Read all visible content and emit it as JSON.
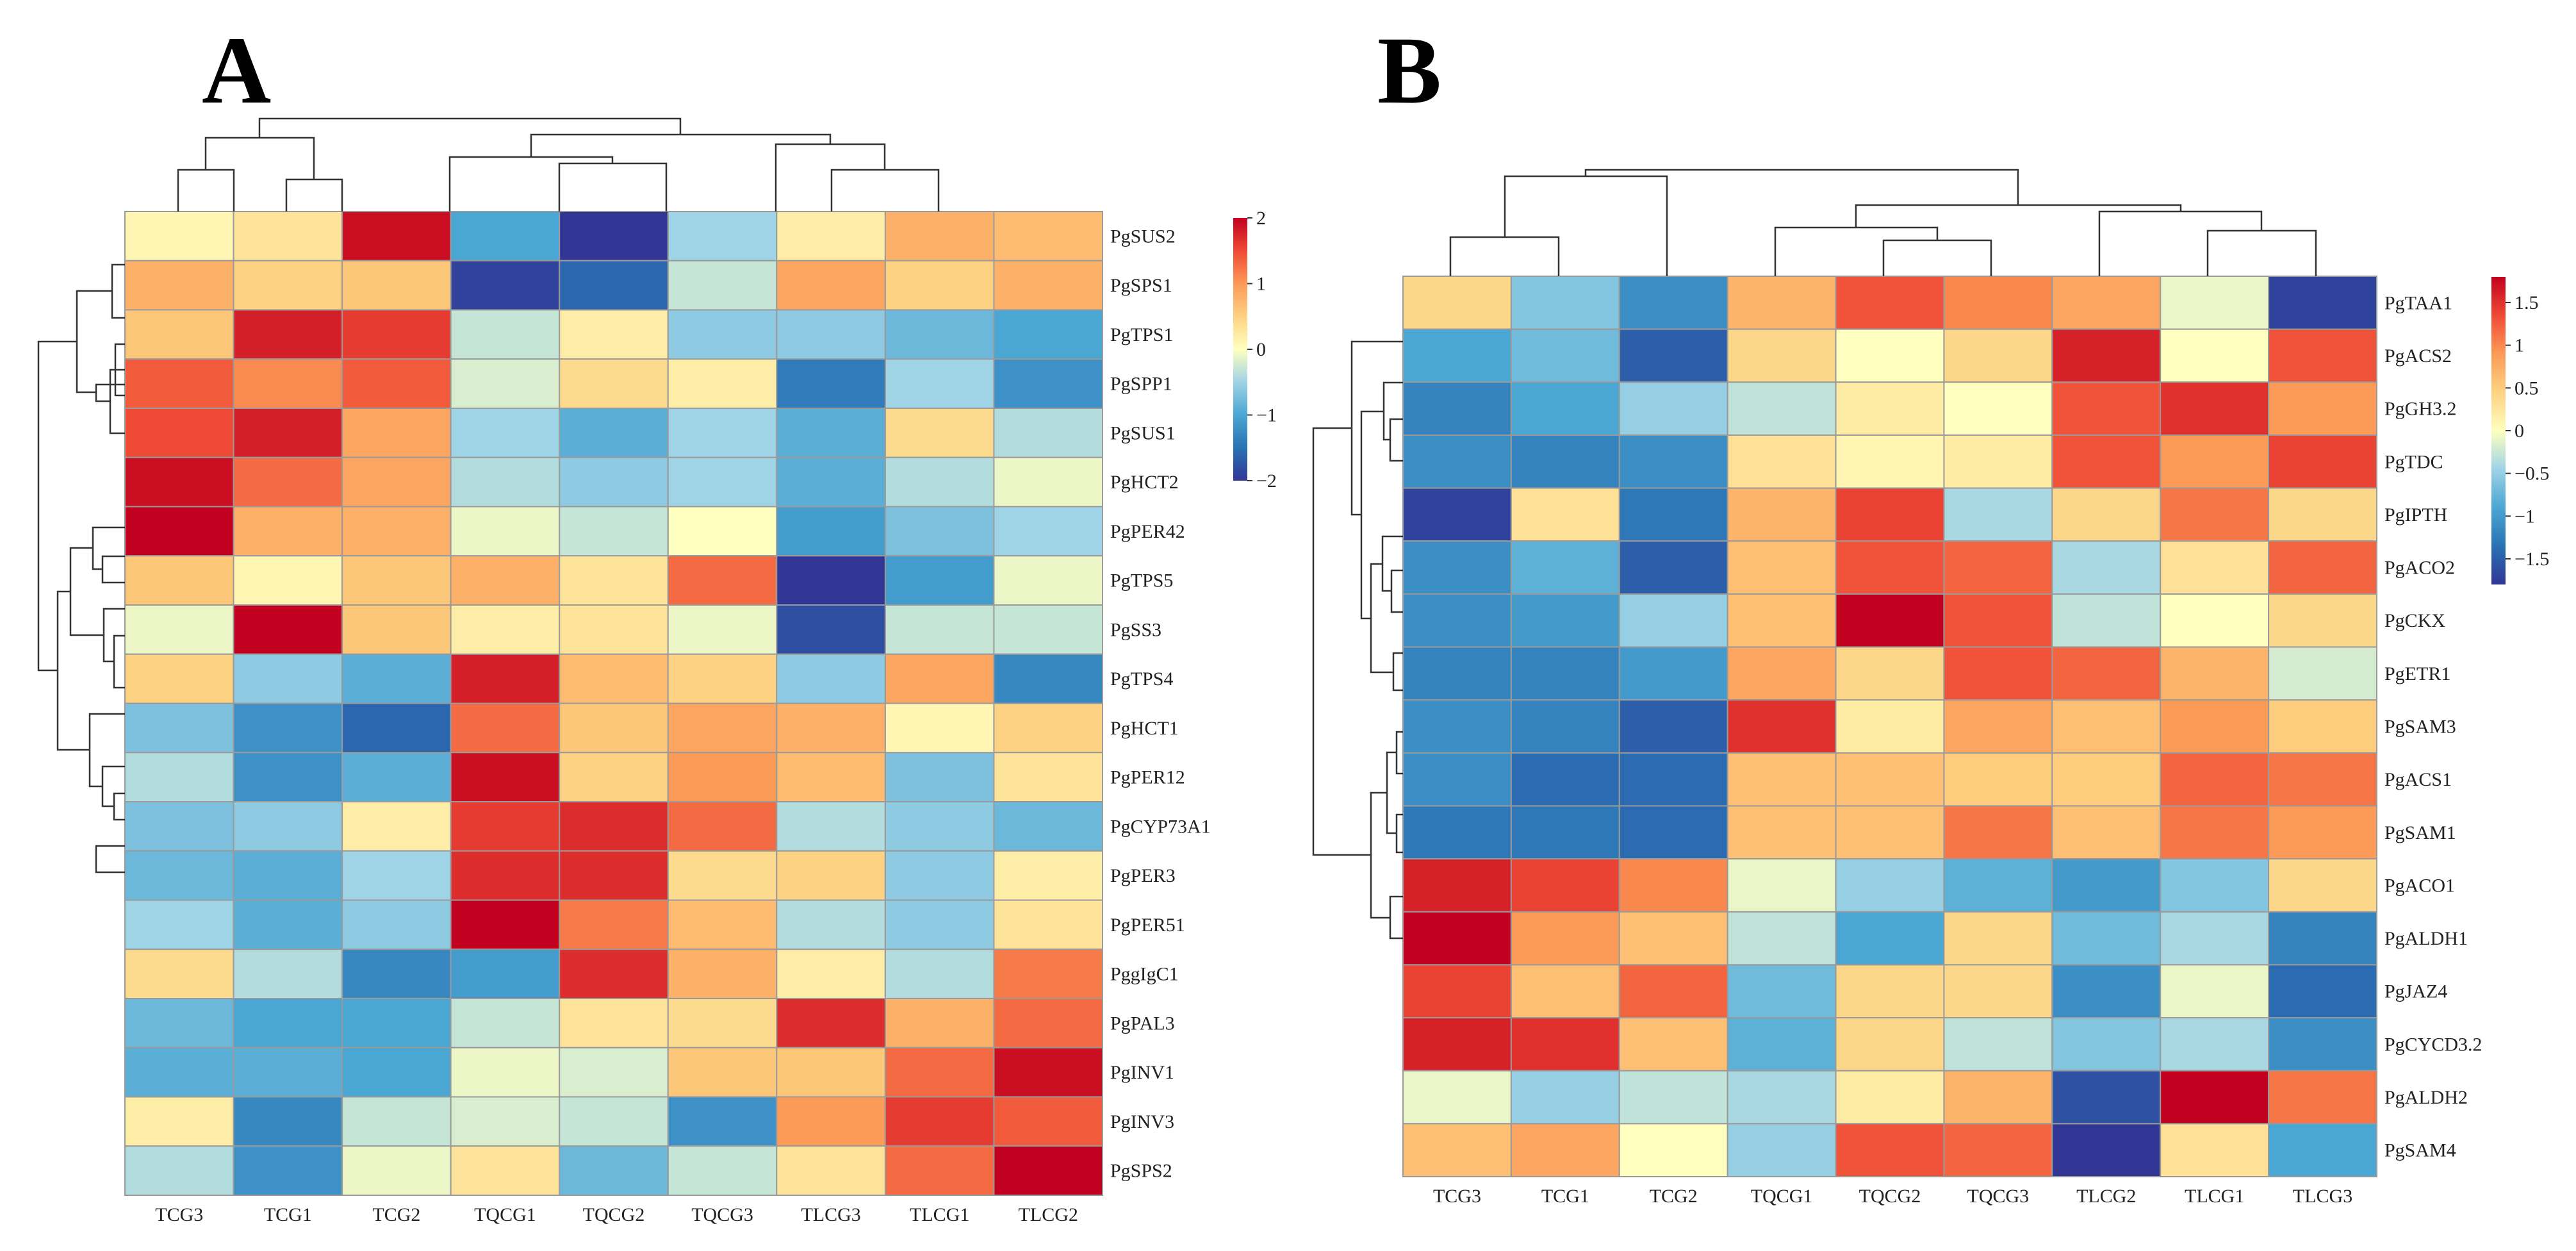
{
  "chart_data": [
    {
      "type": "heatmap",
      "panel": "A",
      "columns": [
        "TCG3",
        "TCG1",
        "TCG2",
        "TQCG1",
        "TQCG2",
        "TQCG3",
        "TLCG3",
        "TLCG1",
        "TLCG2"
      ],
      "rows": [
        "PgSUS2",
        "PgSPS1",
        "PgTPS1",
        "PgSPP1",
        "PgSUS1",
        "PgHCT2",
        "PgPER42",
        "PgTPS5",
        "PgSS3",
        "PgTPS4",
        "PgHCT1",
        "PgPER12",
        "PgCYP73A1",
        "PgPER3",
        "PgPER51",
        "PggIgC1",
        "PgPAL3",
        "PgINV1",
        "PgINV3",
        "PgSPS2"
      ],
      "values": [
        [
          0.1,
          0.3,
          1.9,
          -1.0,
          -2.0,
          -0.5,
          0.2,
          0.8,
          0.7
        ],
        [
          0.8,
          0.5,
          0.6,
          -1.9,
          -1.6,
          -0.3,
          0.9,
          0.5,
          0.8
        ],
        [
          0.6,
          1.8,
          1.6,
          -0.3,
          0.2,
          -0.6,
          -0.6,
          -0.8,
          -1.0
        ],
        [
          1.4,
          1.1,
          1.4,
          -0.2,
          0.4,
          0.2,
          -1.4,
          -0.5,
          -1.2
        ],
        [
          1.5,
          1.8,
          0.9,
          -0.5,
          -0.9,
          -0.5,
          -0.9,
          0.4,
          -0.4
        ],
        [
          1.9,
          1.3,
          0.9,
          -0.4,
          -0.6,
          -0.5,
          -0.9,
          -0.4,
          -0.1
        ],
        [
          2.2,
          0.8,
          0.8,
          -0.1,
          -0.3,
          0.0,
          -1.1,
          -0.7,
          -0.5
        ],
        [
          0.6,
          0.1,
          0.6,
          0.8,
          0.3,
          1.3,
          -2.1,
          -1.1,
          -0.1
        ],
        [
          -0.1,
          2.2,
          0.6,
          0.2,
          0.3,
          -0.1,
          -1.8,
          -0.3,
          -0.3
        ],
        [
          0.5,
          -0.6,
          -0.9,
          1.8,
          0.7,
          0.5,
          -0.6,
          0.9,
          -1.3
        ],
        [
          -0.7,
          -1.2,
          -1.6,
          1.3,
          0.6,
          0.9,
          0.8,
          0.1,
          0.5
        ],
        [
          -0.4,
          -1.2,
          -0.9,
          1.9,
          0.5,
          1.0,
          0.7,
          -0.7,
          0.3
        ],
        [
          -0.7,
          -0.6,
          0.2,
          1.6,
          1.7,
          1.3,
          -0.4,
          -0.6,
          -0.8
        ],
        [
          -0.8,
          -0.9,
          -0.5,
          1.7,
          1.7,
          0.4,
          0.5,
          -0.6,
          0.2
        ],
        [
          -0.5,
          -0.9,
          -0.6,
          2.0,
          1.2,
          0.7,
          -0.4,
          -0.6,
          0.3
        ],
        [
          0.4,
          -0.4,
          -1.3,
          -1.1,
          1.7,
          0.8,
          0.2,
          -0.4,
          1.2
        ],
        [
          -0.8,
          -1.0,
          -1.0,
          -0.3,
          0.3,
          0.4,
          1.7,
          0.8,
          1.3
        ],
        [
          -0.9,
          -0.9,
          -1.0,
          -0.1,
          -0.2,
          0.6,
          0.6,
          1.3,
          1.9
        ],
        [
          0.2,
          -1.3,
          -0.3,
          -0.2,
          -0.3,
          -1.2,
          1.0,
          1.6,
          1.4
        ],
        [
          -0.4,
          -1.2,
          -0.1,
          0.3,
          -0.8,
          -0.3,
          0.3,
          1.3,
          2.1
        ]
      ],
      "colorbar": {
        "min": -2,
        "max": 2,
        "ticks": [
          "2",
          "1",
          "0",
          "−1",
          "−2"
        ]
      },
      "dendrogram": "hierarchical clustering of rows and columns"
    },
    {
      "type": "heatmap",
      "panel": "B",
      "columns": [
        "TCG3",
        "TCG1",
        "TCG2",
        "TQCG1",
        "TQCG2",
        "TQCG3",
        "TLCG2",
        "TLCG1",
        "TLCG3"
      ],
      "rows": [
        "PgTAA1",
        "PgACS2",
        "PgGH3.2",
        "PgTDC",
        "PgIPTH",
        "PgACO2",
        "PgCKX",
        "PgETR1",
        "PgSAM3",
        "PgACS1",
        "PgSAM1",
        "PgACO1",
        "PgALDH1",
        "PgJAZ4",
        "PgCYCD3.2",
        "PgALDH2",
        "PgSAM4"
      ],
      "values": [
        [
          0.4,
          -0.6,
          -1.1,
          0.7,
          1.3,
          1.0,
          0.8,
          -0.1,
          -1.7
        ],
        [
          -0.9,
          -0.7,
          -1.5,
          0.4,
          0.0,
          0.4,
          1.6,
          0.0,
          1.3
        ],
        [
          -1.2,
          -0.9,
          -0.5,
          -0.3,
          0.2,
          0.0,
          1.3,
          1.5,
          0.9
        ],
        [
          -1.1,
          -1.2,
          -1.1,
          0.3,
          0.1,
          0.2,
          1.3,
          0.9,
          1.4
        ],
        [
          -1.7,
          0.3,
          -1.3,
          0.7,
          1.4,
          -0.4,
          0.4,
          1.1,
          0.4
        ],
        [
          -1.1,
          -0.8,
          -1.5,
          0.6,
          1.3,
          1.2,
          -0.4,
          0.3,
          1.2
        ],
        [
          -1.1,
          -1.0,
          -0.5,
          0.6,
          1.9,
          1.3,
          -0.3,
          0.0,
          0.4
        ],
        [
          -1.2,
          -1.2,
          -1.0,
          0.8,
          0.4,
          1.3,
          1.2,
          0.7,
          -0.2
        ],
        [
          -1.1,
          -1.2,
          -1.5,
          1.5,
          0.2,
          0.8,
          0.6,
          0.9,
          0.5
        ],
        [
          -1.1,
          -1.4,
          -1.4,
          0.6,
          0.6,
          0.5,
          0.5,
          1.2,
          1.1
        ],
        [
          -1.3,
          -1.3,
          -1.4,
          0.6,
          0.6,
          1.1,
          0.6,
          1.1,
          0.9
        ],
        [
          1.6,
          1.4,
          1.0,
          -0.1,
          -0.5,
          -0.8,
          -1.0,
          -0.6,
          0.4
        ],
        [
          1.9,
          0.9,
          0.6,
          -0.3,
          -0.9,
          0.4,
          -0.7,
          -0.4,
          -1.2
        ],
        [
          1.4,
          0.6,
          1.2,
          -0.7,
          0.4,
          0.4,
          -1.1,
          -0.1,
          -1.4
        ],
        [
          1.6,
          1.5,
          0.6,
          -0.8,
          0.4,
          -0.3,
          -0.6,
          -0.4,
          -1.1
        ],
        [
          -0.1,
          -0.5,
          -0.3,
          -0.4,
          0.2,
          0.7,
          -1.6,
          1.9,
          1.1
        ],
        [
          0.6,
          0.8,
          0.0,
          -0.5,
          1.3,
          1.2,
          -1.9,
          0.3,
          -0.9
        ]
      ],
      "colorbar": {
        "min": -1.8,
        "max": 1.8,
        "ticks": [
          "1.5",
          "1",
          "0.5",
          "0",
          "−0.5",
          "−1",
          "−1.5"
        ]
      },
      "dendrogram": "hierarchical clustering of rows and columns"
    }
  ]
}
